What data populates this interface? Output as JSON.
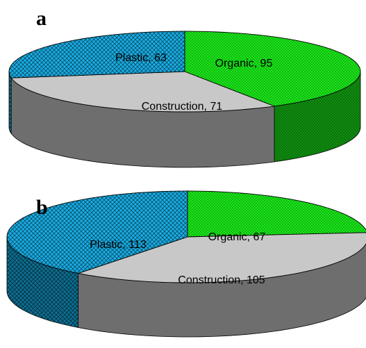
{
  "chart_data": [
    {
      "type": "pie",
      "panel_label": "a",
      "style": "3d",
      "slices": [
        {
          "label": "Organic",
          "value": 95,
          "color": "#19e619",
          "side_color": "#0f8f0f",
          "pattern": "dots"
        },
        {
          "label": "Construction",
          "value": 71,
          "color": "#c8c8c8",
          "side_color": "#6e6e6e",
          "pattern": "none"
        },
        {
          "label": "Plastic",
          "value": 63,
          "color": "#19aee6",
          "side_color": "#0e6f92",
          "pattern": "crosshatch"
        }
      ]
    },
    {
      "type": "pie",
      "panel_label": "b",
      "style": "3d",
      "slices": [
        {
          "label": "Organic",
          "value": 67,
          "color": "#19e619",
          "side_color": "#0f8f0f",
          "pattern": "dots"
        },
        {
          "label": "Construction",
          "value": 105,
          "color": "#c8c8c8",
          "side_color": "#6e6e6e",
          "pattern": "none"
        },
        {
          "label": "Plastic",
          "value": 113,
          "color": "#19aee6",
          "side_color": "#0e6f92",
          "pattern": "crosshatch"
        }
      ]
    }
  ]
}
